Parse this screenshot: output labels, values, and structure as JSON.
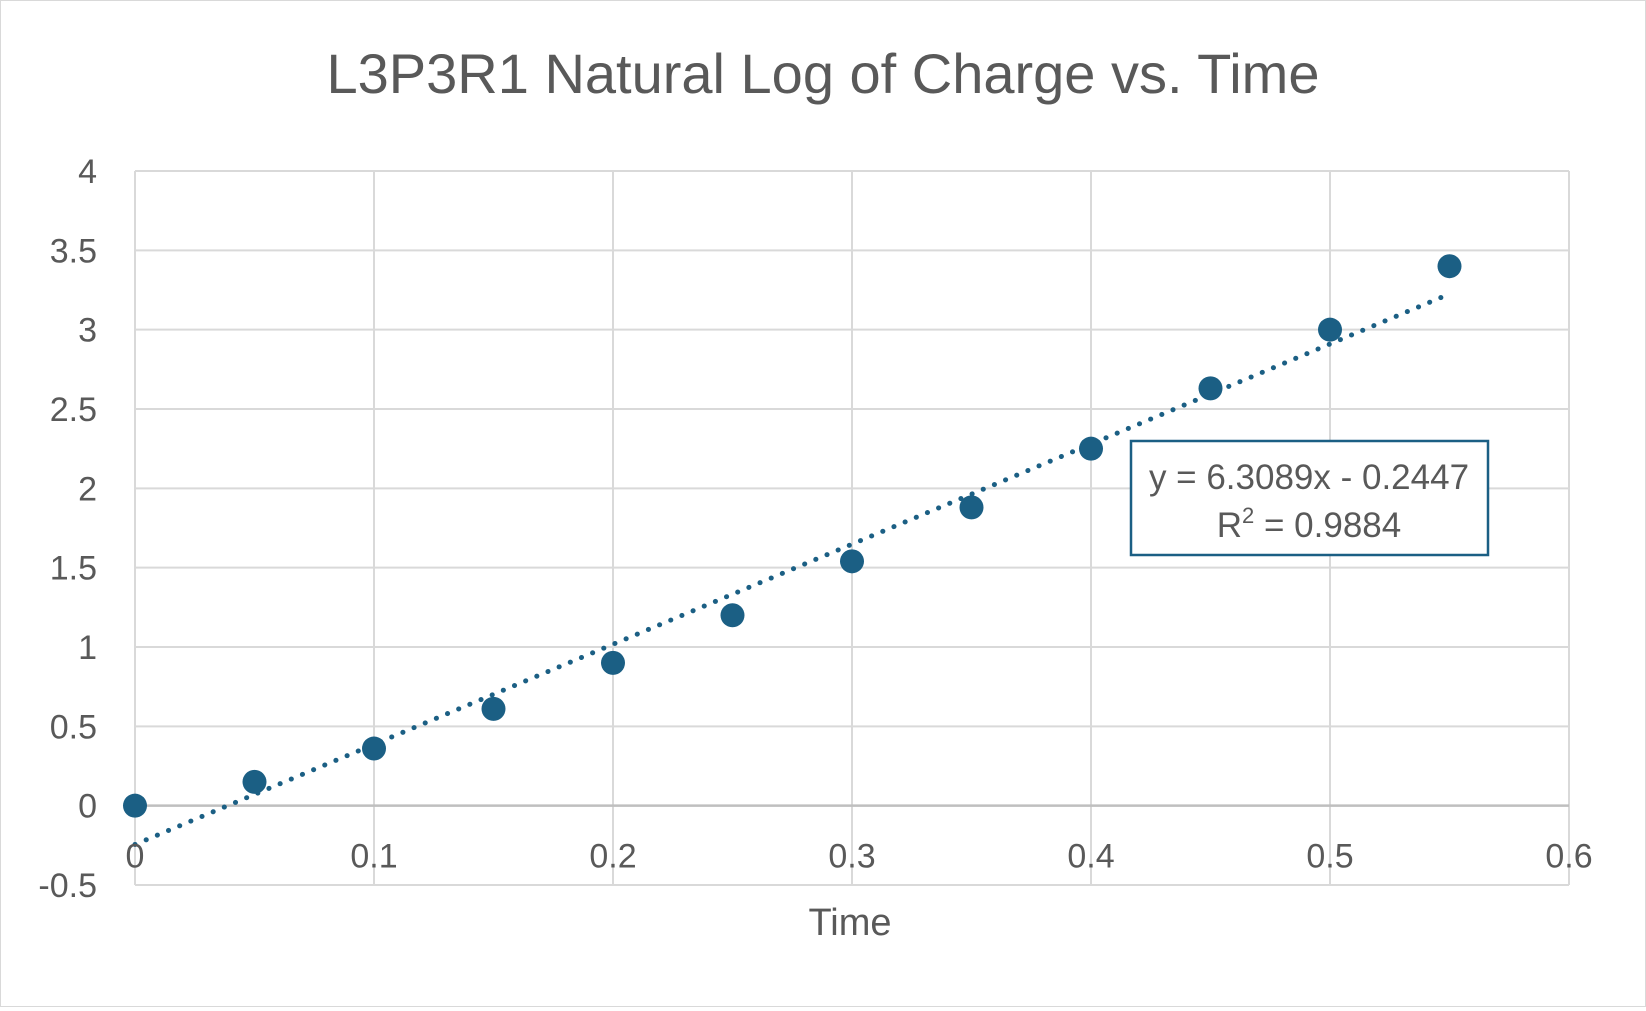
{
  "chart_data": {
    "type": "scatter",
    "title": "L3P3R1 Natural Log of Charge vs. Time",
    "xlabel": "Time",
    "ylabel": "",
    "xlim": [
      0,
      0.6
    ],
    "ylim": [
      -0.5,
      4
    ],
    "x_ticks": [
      "0",
      "0.1",
      "0.2",
      "0.3",
      "0.4",
      "0.5",
      "0.6"
    ],
    "y_ticks": [
      "-0.5",
      "0",
      "0.5",
      "1",
      "1.5",
      "2",
      "2.5",
      "3",
      "3.5",
      "4"
    ],
    "grid": true,
    "legend": "none",
    "marker_color": "#1b5f84",
    "series": [
      {
        "x": [
          0,
          0.05,
          0.1,
          0.15,
          0.2,
          0.25,
          0.3,
          0.35,
          0.4,
          0.45,
          0.5,
          0.55
        ],
        "y": [
          0,
          0.15,
          0.36,
          0.61,
          0.9,
          1.2,
          1.54,
          1.88,
          2.25,
          2.63,
          3.0,
          3.4
        ]
      }
    ],
    "trendline": {
      "type": "linear",
      "style": "dotted",
      "slope": 6.3089,
      "intercept": -0.2447,
      "x_range": [
        0,
        0.55
      ],
      "equation_label": "y = 6.3089x - 0.2447",
      "r2_prefix": "R",
      "r2_sup": "2",
      "r2_value": " = 0.9884"
    }
  }
}
